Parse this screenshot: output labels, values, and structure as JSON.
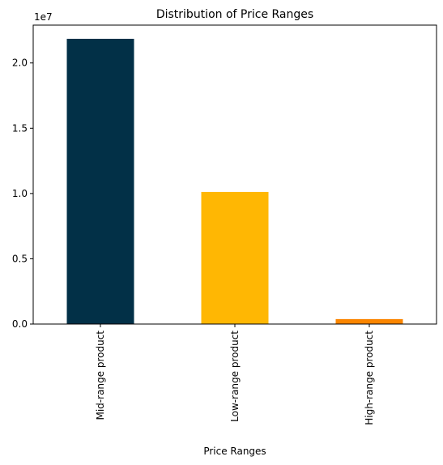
{
  "chart_data": {
    "type": "bar",
    "title": "Distribution of Price Ranges",
    "xlabel": "Price Ranges",
    "ylabel": "",
    "categories": [
      "Mid-range product",
      "Low-range product",
      "High-range product"
    ],
    "values": [
      21850000,
      10120000,
      380000
    ],
    "colors": [
      "#023047",
      "#ffb703",
      "#fb8500"
    ],
    "ylim": [
      0,
      22900000
    ],
    "y_ticks": [
      0,
      5000000,
      10000000,
      15000000,
      20000000
    ],
    "y_tick_labels": [
      "0.0",
      "0.5",
      "1.0",
      "1.5",
      "2.0"
    ],
    "y_offset_label": "1e7",
    "grid": false,
    "legend": "none"
  }
}
